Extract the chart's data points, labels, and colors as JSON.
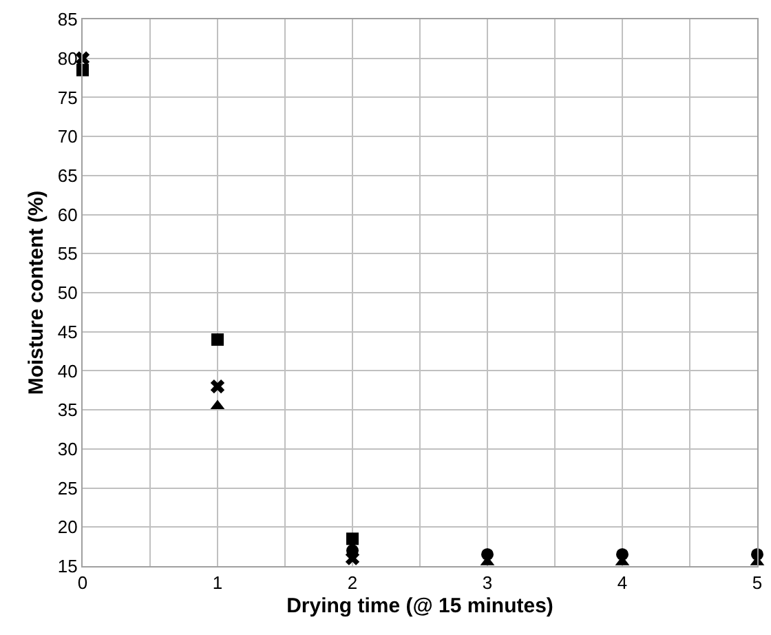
{
  "chart_data": {
    "type": "scatter",
    "xlabel": "Drying time (@ 15 minutes)",
    "ylabel": "Moisture content (%)",
    "x": [
      0,
      1,
      2,
      3,
      4,
      5
    ],
    "series": [
      {
        "color": "#000000",
        "marker": "square",
        "values": [
          78.5,
          44,
          18.5,
          null,
          null,
          null
        ]
      },
      {
        "color": "#000000",
        "marker": "triangle",
        "values": [
          null,
          35.5,
          null,
          15.5,
          15.5,
          15.5
        ]
      },
      {
        "color": "#000000",
        "marker": "cross",
        "values": [
          80,
          38,
          16,
          null,
          null,
          null
        ]
      },
      {
        "color": "#000000",
        "marker": "circle",
        "values": [
          null,
          null,
          17,
          16.5,
          16.5,
          16.5
        ]
      }
    ],
    "xlim": [
      0,
      5
    ],
    "xticks": [
      0,
      {
        "value": 0.5,
        "label": null
      },
      1,
      {
        "value": 1.5,
        "label": null
      },
      2,
      {
        "value": 2.5,
        "label": null
      },
      3,
      {
        "value": 3.5,
        "label": null
      },
      4,
      {
        "value": 4.5,
        "label": null
      },
      5
    ],
    "ylim": [
      15,
      85
    ],
    "yticks": [
      15,
      20,
      25,
      30,
      35,
      40,
      45,
      50,
      55,
      60,
      65,
      70,
      75,
      80,
      85
    ],
    "grid": true
  }
}
